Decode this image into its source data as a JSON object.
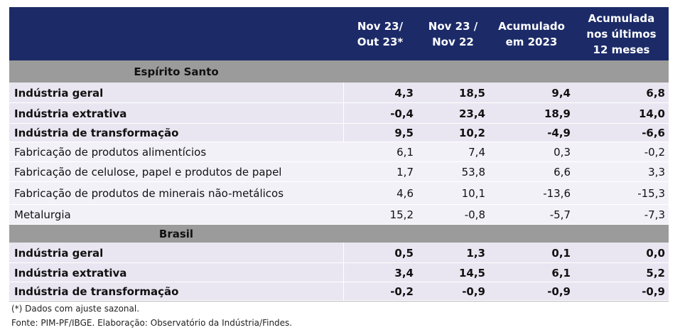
{
  "header": {
    "columns": [
      "Nov 23/\nOut 23*",
      "Nov 23 /\nNov 22",
      "Acumulado\nem 2023",
      "Acumulada\nnos últimos\n12 meses"
    ]
  },
  "sections": [
    {
      "title": "Espírito Santo",
      "rows": [
        {
          "label": "Indústria geral",
          "bold": true,
          "values": [
            "4,3",
            "18,5",
            "9,4",
            "6,8"
          ]
        },
        {
          "label": "Indústria extrativa",
          "bold": true,
          "values": [
            "-0,4",
            "23,4",
            "18,9",
            "14,0"
          ]
        },
        {
          "label": "Indústria de transformação",
          "bold": true,
          "values": [
            "9,5",
            "10,2",
            "-4,9",
            "-6,6"
          ]
        },
        {
          "label": "Fabricação de produtos alimentícios",
          "bold": false,
          "values": [
            "6,1",
            "7,4",
            "0,3",
            "-0,2"
          ]
        },
        {
          "label": "Fabricação de celulose, papel e produtos de papel",
          "bold": false,
          "values": [
            "1,7",
            "53,8",
            "6,6",
            "3,3"
          ]
        },
        {
          "label": "Fabricação de produtos de minerais não-metálicos",
          "bold": false,
          "values": [
            "4,6",
            "10,1",
            "-13,6",
            "-15,3"
          ]
        },
        {
          "label": "Metalurgia",
          "bold": false,
          "values": [
            "15,2",
            "-0,8",
            "-5,7",
            "-7,3"
          ]
        }
      ]
    },
    {
      "title": "Brasil",
      "rows": [
        {
          "label": "Indústria geral",
          "bold": true,
          "values": [
            "0,5",
            "1,3",
            "0,1",
            "0,0"
          ]
        },
        {
          "label": "Indústria extrativa",
          "bold": true,
          "values": [
            "3,4",
            "14,5",
            "6,1",
            "5,2"
          ]
        },
        {
          "label": "Indústria de transformação",
          "bold": true,
          "values": [
            "-0,2",
            "-0,9",
            "-0,9",
            "-0,9"
          ]
        }
      ]
    }
  ],
  "footnotes": [
    "(*) Dados com ajuste sazonal.",
    "Fonte: PIM-PF/IBGE. Elaboração: Observatório da Indústria/Findes."
  ]
}
